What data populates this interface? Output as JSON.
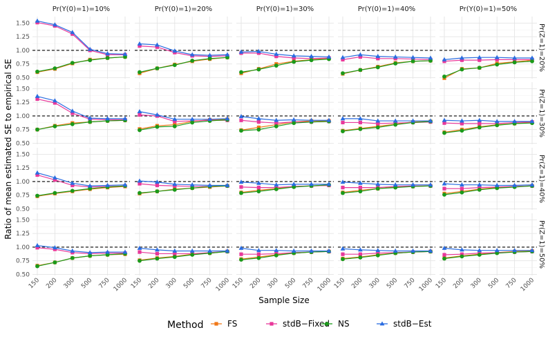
{
  "chart_data": {
    "type": "line",
    "xlabel": "Sample Size",
    "ylabel": "Ratio of mean estimated SE to empirical SE",
    "x": [
      150,
      200,
      300,
      500,
      750,
      1000
    ],
    "x_tick_labels": [
      "150",
      "200",
      "300",
      "500",
      "750",
      "1000"
    ],
    "y_ticks": [
      0.5,
      0.75,
      1.0,
      1.25,
      1.5
    ],
    "y_tick_labels": [
      "0.50",
      "0.75",
      "1.00",
      "1.25",
      "1.50"
    ],
    "ylim": [
      0.48,
      1.62
    ],
    "reference_line": 1.0,
    "grid": true,
    "legend_position": "bottom",
    "column_facets": [
      "Pr(Y(0)=1)=10%",
      "Pr(Y(0)=1)=20%",
      "Pr(Y(0)=1)=30%",
      "Pr(Y(0)=1)=40%",
      "Pr(Y(0)=1)=50%"
    ],
    "row_facets": [
      "Pr(Z=1)=20%",
      "Pr(Z=1)=30%",
      "Pr(Z=1)=40%",
      "Pr(Z=1)=50%"
    ],
    "legend": {
      "title": "Method",
      "items": [
        {
          "name": "FS",
          "color": "#f07818",
          "marker": "square"
        },
        {
          "name": "stdB−Fixed",
          "color": "#e8389a",
          "marker": "square"
        },
        {
          "name": "NS",
          "color": "#1a9a1a",
          "marker": "circle"
        },
        {
          "name": "stdB−Est",
          "color": "#2a6ce0",
          "marker": "triangle"
        }
      ]
    },
    "panels": [
      [
        {
          "FS": [
            0.6,
            0.66,
            0.76,
            0.83,
            0.86,
            0.88
          ],
          "stdB-Fixed": [
            1.51,
            1.45,
            1.3,
            1.0,
            0.92,
            0.92
          ],
          "NS": [
            0.61,
            0.67,
            0.77,
            0.82,
            0.86,
            0.88
          ],
          "stdB-Est": [
            1.54,
            1.47,
            1.33,
            1.02,
            0.94,
            0.93
          ]
        },
        {
          "FS": [
            0.58,
            0.67,
            0.74,
            0.8,
            0.84,
            0.87
          ],
          "stdB-Fixed": [
            1.08,
            1.06,
            0.96,
            0.9,
            0.89,
            0.9
          ],
          "NS": [
            0.6,
            0.67,
            0.73,
            0.81,
            0.85,
            0.87
          ],
          "stdB-Est": [
            1.12,
            1.1,
            0.99,
            0.92,
            0.91,
            0.92
          ]
        },
        {
          "FS": [
            0.58,
            0.66,
            0.75,
            0.8,
            0.83,
            0.85
          ],
          "stdB-Fixed": [
            0.95,
            0.95,
            0.89,
            0.86,
            0.85,
            0.86
          ],
          "NS": [
            0.6,
            0.65,
            0.72,
            0.79,
            0.82,
            0.84
          ],
          "stdB-Est": [
            0.97,
            0.98,
            0.93,
            0.9,
            0.89,
            0.88
          ]
        },
        {
          "FS": [
            0.57,
            0.64,
            0.7,
            0.77,
            0.8,
            0.81
          ],
          "stdB-Fixed": [
            0.83,
            0.88,
            0.85,
            0.85,
            0.84,
            0.83
          ],
          "NS": [
            0.58,
            0.64,
            0.69,
            0.76,
            0.8,
            0.81
          ],
          "stdB-Est": [
            0.87,
            0.92,
            0.89,
            0.88,
            0.87,
            0.86
          ]
        },
        {
          "FS": [
            0.49,
            0.66,
            0.68,
            0.76,
            0.79,
            0.82
          ],
          "stdB-Fixed": [
            0.8,
            0.82,
            0.82,
            0.83,
            0.83,
            0.83
          ],
          "NS": [
            0.52,
            0.65,
            0.68,
            0.74,
            0.78,
            0.8
          ],
          "stdB-Est": [
            0.83,
            0.86,
            0.87,
            0.87,
            0.86,
            0.86
          ]
        }
      ],
      [
        {
          "FS": [
            0.75,
            0.82,
            0.87,
            0.89,
            0.91,
            0.92
          ],
          "stdB-Fixed": [
            1.31,
            1.24,
            1.05,
            0.94,
            0.93,
            0.93
          ],
          "NS": [
            0.75,
            0.81,
            0.85,
            0.89,
            0.91,
            0.92
          ],
          "stdB-Est": [
            1.36,
            1.28,
            1.09,
            0.96,
            0.95,
            0.95
          ]
        },
        {
          "FS": [
            0.76,
            0.82,
            0.84,
            0.9,
            0.93,
            0.94
          ],
          "stdB-Fixed": [
            1.02,
            1.0,
            0.9,
            0.91,
            0.92,
            0.92
          ],
          "NS": [
            0.74,
            0.8,
            0.81,
            0.88,
            0.91,
            0.93
          ],
          "stdB-Est": [
            1.08,
            1.02,
            0.94,
            0.94,
            0.94,
            0.95
          ]
        },
        {
          "FS": [
            0.74,
            0.79,
            0.84,
            0.89,
            0.91,
            0.91
          ],
          "stdB-Fixed": [
            0.92,
            0.89,
            0.87,
            0.89,
            0.89,
            0.9
          ],
          "NS": [
            0.73,
            0.75,
            0.81,
            0.87,
            0.89,
            0.9
          ],
          "stdB-Est": [
            0.99,
            0.95,
            0.92,
            0.93,
            0.92,
            0.92
          ]
        },
        {
          "FS": [
            0.73,
            0.77,
            0.81,
            0.85,
            0.89,
            0.9
          ],
          "stdB-Fixed": [
            0.88,
            0.88,
            0.86,
            0.87,
            0.88,
            0.89
          ],
          "NS": [
            0.72,
            0.76,
            0.79,
            0.84,
            0.88,
            0.9
          ],
          "stdB-Est": [
            0.95,
            0.95,
            0.91,
            0.91,
            0.91,
            0.91
          ]
        },
        {
          "FS": [
            0.7,
            0.75,
            0.8,
            0.84,
            0.86,
            0.88
          ],
          "stdB-Fixed": [
            0.87,
            0.86,
            0.86,
            0.86,
            0.88,
            0.89
          ],
          "NS": [
            0.69,
            0.73,
            0.79,
            0.83,
            0.86,
            0.87
          ],
          "stdB-Est": [
            0.92,
            0.91,
            0.92,
            0.9,
            0.9,
            0.9
          ]
        }
      ],
      [
        {
          "FS": [
            0.73,
            0.78,
            0.82,
            0.86,
            0.89,
            0.91
          ],
          "stdB-Fixed": [
            1.12,
            1.03,
            0.93,
            0.9,
            0.91,
            0.92
          ],
          "NS": [
            0.74,
            0.79,
            0.83,
            0.87,
            0.9,
            0.92
          ],
          "stdB-Est": [
            1.16,
            1.07,
            0.97,
            0.92,
            0.93,
            0.94
          ]
        },
        {
          "FS": [
            0.78,
            0.82,
            0.86,
            0.88,
            0.9,
            0.92
          ],
          "stdB-Fixed": [
            0.96,
            0.93,
            0.92,
            0.91,
            0.91,
            0.92
          ],
          "NS": [
            0.79,
            0.82,
            0.85,
            0.88,
            0.91,
            0.92
          ],
          "stdB-Est": [
            1.01,
            0.99,
            0.95,
            0.94,
            0.93,
            0.93
          ]
        },
        {
          "FS": [
            0.8,
            0.84,
            0.87,
            0.91,
            0.92,
            0.93
          ],
          "stdB-Fixed": [
            0.9,
            0.89,
            0.89,
            0.91,
            0.92,
            0.93
          ],
          "NS": [
            0.79,
            0.82,
            0.86,
            0.9,
            0.92,
            0.94
          ],
          "stdB-Est": [
            0.99,
            0.97,
            0.94,
            0.95,
            0.95,
            0.95
          ]
        },
        {
          "FS": [
            0.8,
            0.84,
            0.87,
            0.9,
            0.91,
            0.92
          ],
          "stdB-Fixed": [
            0.89,
            0.89,
            0.89,
            0.91,
            0.92,
            0.92
          ],
          "NS": [
            0.79,
            0.82,
            0.87,
            0.89,
            0.91,
            0.92
          ],
          "stdB-Est": [
            0.99,
            0.97,
            0.95,
            0.94,
            0.94,
            0.94
          ]
        },
        {
          "FS": [
            0.78,
            0.82,
            0.86,
            0.89,
            0.91,
            0.92
          ],
          "stdB-Fixed": [
            0.87,
            0.87,
            0.89,
            0.9,
            0.91,
            0.92
          ],
          "NS": [
            0.76,
            0.8,
            0.85,
            0.88,
            0.9,
            0.92
          ],
          "stdB-Est": [
            0.96,
            0.94,
            0.94,
            0.93,
            0.93,
            0.94
          ]
        }
      ],
      [
        {
          "FS": [
            0.66,
            0.72,
            0.8,
            0.84,
            0.86,
            0.87
          ],
          "stdB-Fixed": [
            0.99,
            0.96,
            0.9,
            0.88,
            0.89,
            0.89
          ],
          "NS": [
            0.65,
            0.72,
            0.8,
            0.84,
            0.86,
            0.88
          ],
          "stdB-Est": [
            1.03,
            0.99,
            0.93,
            0.9,
            0.91,
            0.91
          ]
        },
        {
          "FS": [
            0.76,
            0.8,
            0.83,
            0.87,
            0.89,
            0.92
          ],
          "stdB-Fixed": [
            0.91,
            0.88,
            0.88,
            0.88,
            0.9,
            0.92
          ],
          "NS": [
            0.75,
            0.79,
            0.82,
            0.86,
            0.89,
            0.92
          ],
          "stdB-Est": [
            0.98,
            0.95,
            0.93,
            0.93,
            0.93,
            0.93
          ]
        },
        {
          "FS": [
            0.78,
            0.82,
            0.86,
            0.89,
            0.91,
            0.92
          ],
          "stdB-Fixed": [
            0.87,
            0.87,
            0.88,
            0.9,
            0.91,
            0.92
          ],
          "NS": [
            0.77,
            0.8,
            0.85,
            0.89,
            0.91,
            0.92
          ],
          "stdB-Est": [
            0.98,
            0.94,
            0.94,
            0.93,
            0.93,
            0.93
          ]
        },
        {
          "FS": [
            0.79,
            0.82,
            0.86,
            0.89,
            0.91,
            0.92
          ],
          "stdB-Fixed": [
            0.87,
            0.87,
            0.89,
            0.9,
            0.91,
            0.92
          ],
          "NS": [
            0.78,
            0.81,
            0.85,
            0.89,
            0.91,
            0.92
          ],
          "stdB-Est": [
            0.97,
            0.95,
            0.94,
            0.93,
            0.93,
            0.93
          ]
        },
        {
          "FS": [
            0.8,
            0.84,
            0.87,
            0.9,
            0.92,
            0.93
          ],
          "stdB-Fixed": [
            0.86,
            0.87,
            0.89,
            0.9,
            0.91,
            0.92
          ],
          "NS": [
            0.79,
            0.83,
            0.86,
            0.89,
            0.91,
            0.92
          ],
          "stdB-Est": [
            0.98,
            0.95,
            0.94,
            0.94,
            0.94,
            0.94
          ]
        }
      ]
    ]
  }
}
